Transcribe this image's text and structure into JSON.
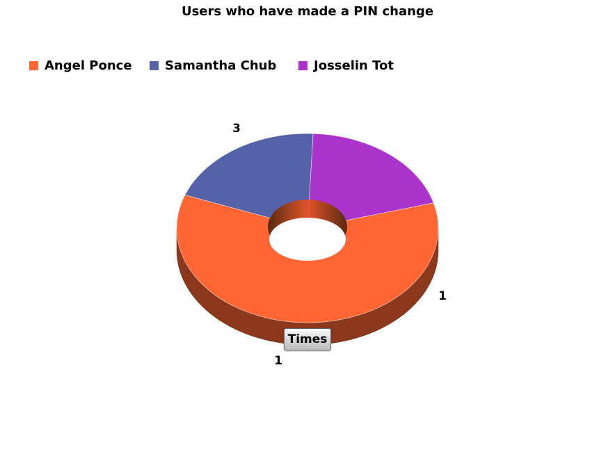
{
  "title": "Users who have made a PIN change",
  "button_label": "Times",
  "chart_data": {
    "type": "pie",
    "variant": "3d-donut",
    "title": "Users who have made a PIN change",
    "legend_position": "top-left",
    "categories": [
      "Angel Ponce",
      "Samantha Chub",
      "Josselin Tot"
    ],
    "values": [
      3,
      1,
      1
    ],
    "data_labels": [
      "3",
      "1",
      "1"
    ],
    "colors": [
      "#ff6633",
      "#5561a8",
      "#aa33cc"
    ]
  }
}
